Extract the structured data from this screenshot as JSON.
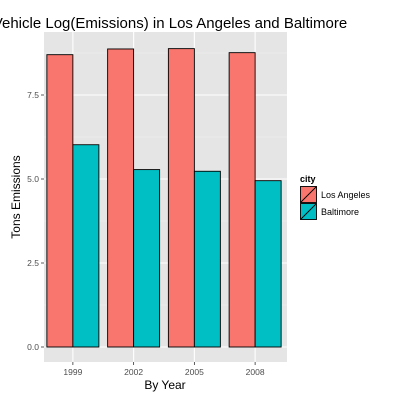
{
  "chart_data": {
    "type": "bar",
    "title": "Vehicle Log(Emissions) in Los Angeles and Baltimore",
    "xlabel": "By Year",
    "ylabel": "Tons Emissions",
    "categories": [
      "1999",
      "2002",
      "2005",
      "2008"
    ],
    "series": [
      {
        "name": "Los Angeles",
        "color": "#f8766d",
        "values": [
          8.7,
          8.87,
          8.88,
          8.76
        ]
      },
      {
        "name": "Baltimore",
        "color": "#00bfc4",
        "values": [
          6.02,
          5.28,
          5.23,
          4.95
        ]
      }
    ],
    "ylim": [
      0,
      9.2
    ],
    "yticks": [
      0,
      2.5,
      5,
      7.5
    ],
    "ytick_labels": [
      "0.0",
      "2.5",
      "5.0",
      "7.5"
    ],
    "grid": true,
    "panel_background": "#e5e5e5",
    "legend": {
      "title": "city",
      "placement": "right"
    }
  }
}
